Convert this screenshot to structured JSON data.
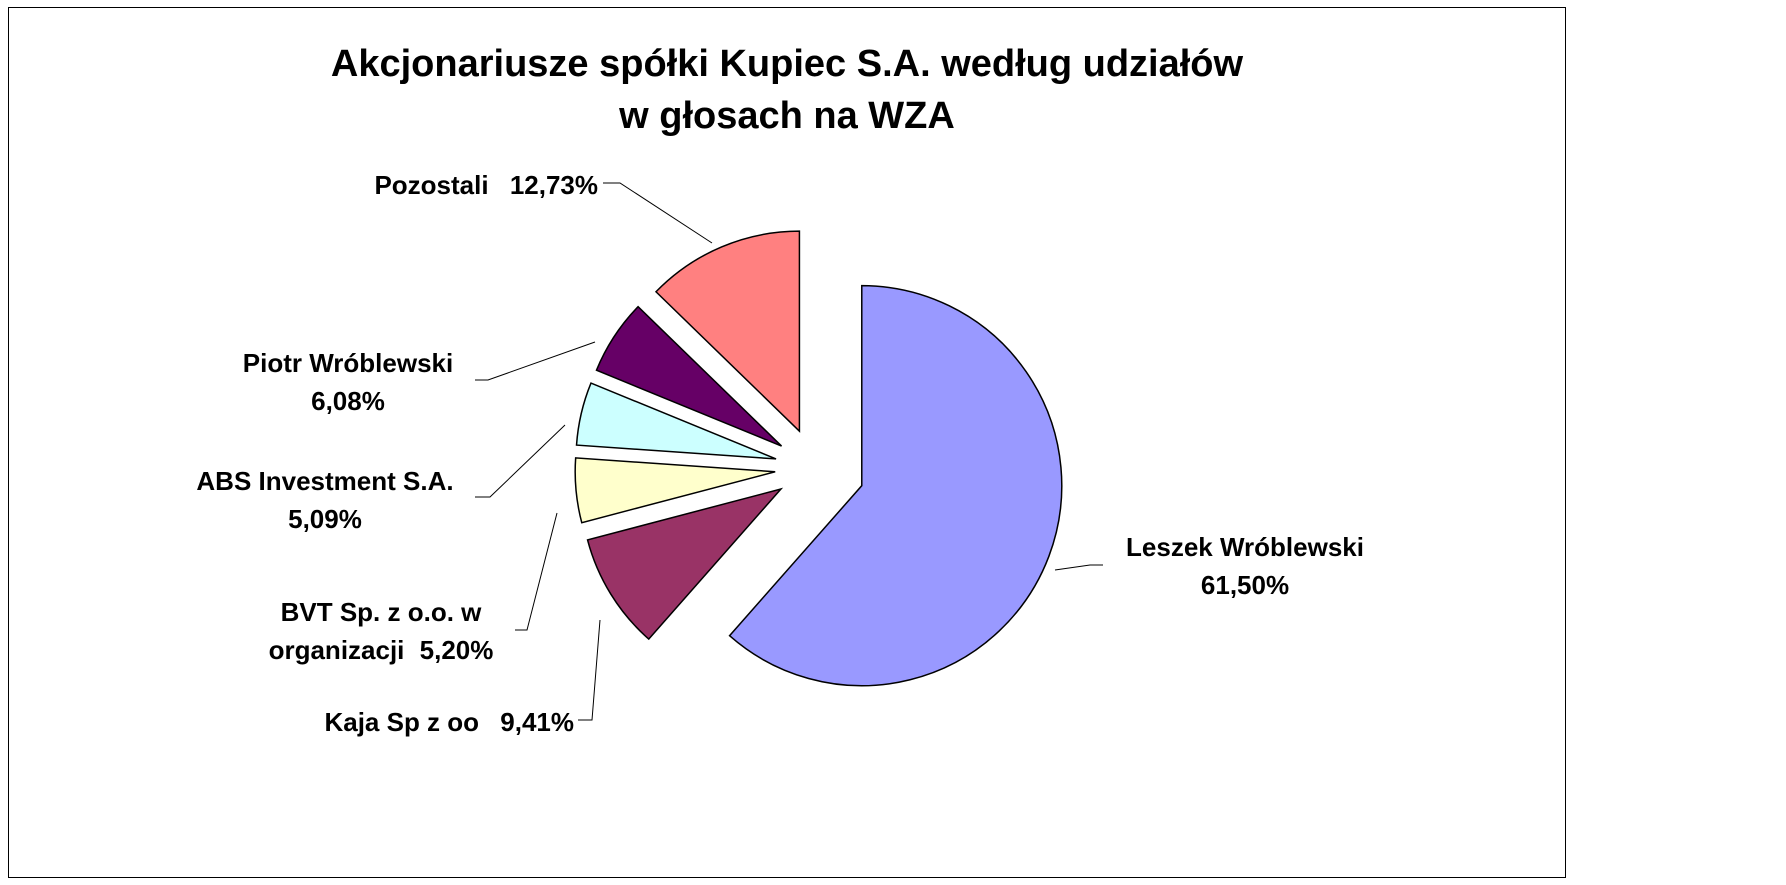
{
  "chart_data": {
    "type": "pie",
    "title": "Akcjonariusze spółki Kupiec S.A. według udziałów\nw głosach na WZA",
    "categories": [
      "Leszek Wróblewski",
      "Kaja Sp z oo",
      "BVT Sp. z o.o. w organizacji",
      "ABS Investment S.A.",
      "Piotr Wróblewski",
      "Pozostali"
    ],
    "values": [
      61.5,
      9.41,
      5.2,
      5.09,
      6.08,
      12.73
    ],
    "value_labels": [
      "61,50%",
      "9,41%",
      "5,20%",
      "5,09%",
      "6,08%",
      "12,73%"
    ],
    "colors": [
      "#9999ff",
      "#993366",
      "#ffffcc",
      "#ccffff",
      "#660066",
      "#ff8080"
    ]
  }
}
